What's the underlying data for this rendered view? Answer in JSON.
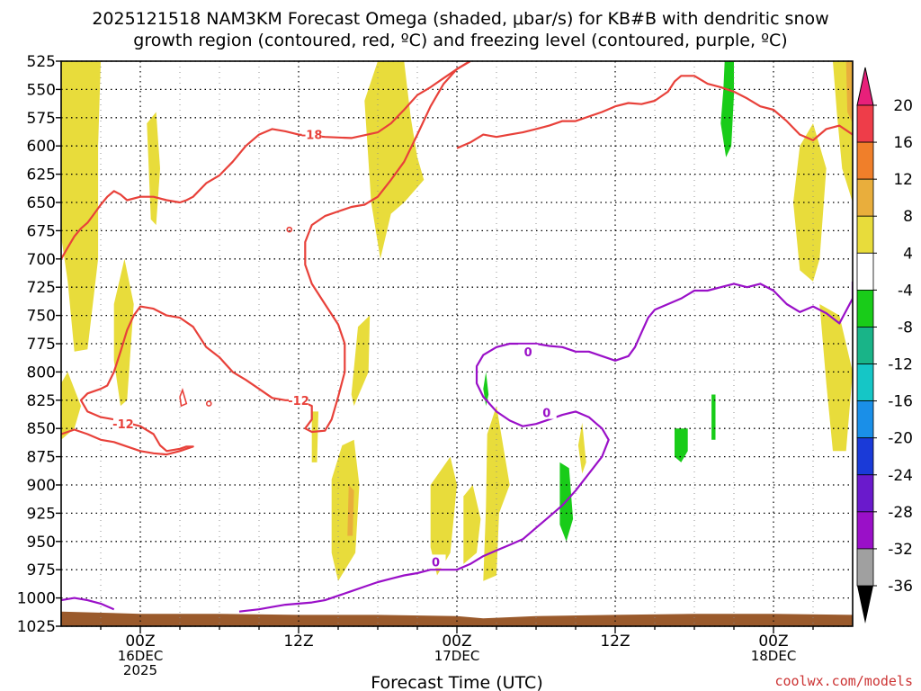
{
  "chart_data": {
    "type": "time-height-cross-section",
    "title_line1": "2025121518 NAM3KM Forecast Omega (shaded, μbar/s) for KB#B with dendritic snow",
    "title_line2": "growth region (contoured, red, ºC) and freezing level (contoured, purple, ºC)",
    "xlabel": "Forecast Time (UTC)",
    "credit": "coolwx.com/models",
    "x_range_hours": [
      -6,
      54
    ],
    "x_ticks": [
      {
        "hour": 0,
        "lines": [
          "00Z",
          "16DEC",
          "2025"
        ]
      },
      {
        "hour": 12,
        "lines": [
          "12Z"
        ]
      },
      {
        "hour": 24,
        "lines": [
          "00Z",
          "17DEC"
        ]
      },
      {
        "hour": 36,
        "lines": [
          "12Z"
        ]
      },
      {
        "hour": 48,
        "lines": [
          "00Z",
          "18DEC"
        ]
      }
    ],
    "y_range_hpa": [
      525,
      1025
    ],
    "y_ticks": [
      525,
      550,
      575,
      600,
      625,
      650,
      675,
      700,
      725,
      750,
      775,
      800,
      825,
      850,
      875,
      900,
      925,
      950,
      975,
      1000,
      1025
    ],
    "colorbar": {
      "labels": [
        "20",
        "16",
        "12",
        "8",
        "4",
        "-4",
        "-8",
        "-12",
        "-16",
        "-20",
        "-24",
        "-28",
        "-32",
        "-36"
      ],
      "colors": [
        "#ee3d49",
        "#f07f2a",
        "#e9ae3c",
        "#e8dc3b",
        "#ffffff",
        "#19cc19",
        "#19b488",
        "#15c6c6",
        "#1a8fe8",
        "#1a3ad8",
        "#6a1acc",
        "#9a10c8",
        "#a0a0a0"
      ],
      "top_arrow_color": "#e8207a",
      "bottom_arrow_color": "#000000"
    },
    "colors": {
      "rising_weak": "#e8dc3b",
      "rising_moderate": "#e9ae3c",
      "rising_strong": "#e8802a",
      "sinking": "#19cc19",
      "dgz_contour": "#e8413a",
      "freezing_contour": "#9a10c8",
      "terrain": "#9a5a2c"
    },
    "contour_labels": {
      "dgz_cold": "-18",
      "dgz_warm": "-12",
      "dgz_warm_2": "-12",
      "freezing": "0",
      "freezing_2": "0",
      "freezing_3": "0"
    },
    "dgz_minus18_contour": [
      [
        -6,
        700
      ],
      [
        -5.5,
        690
      ],
      [
        -5,
        680
      ],
      [
        -4.5,
        673
      ],
      [
        -4,
        668
      ],
      [
        -3.5,
        660
      ],
      [
        -3,
        652
      ],
      [
        -2.5,
        645
      ],
      [
        -2,
        640
      ],
      [
        -1.5,
        643
      ],
      [
        -1,
        648
      ],
      [
        0,
        645
      ],
      [
        1,
        645
      ],
      [
        2,
        648
      ],
      [
        3,
        650
      ],
      [
        3.5,
        648
      ],
      [
        4,
        645
      ],
      [
        5,
        633
      ],
      [
        6,
        626
      ],
      [
        7,
        614
      ],
      [
        8,
        600
      ],
      [
        9,
        590
      ],
      [
        10,
        585
      ],
      [
        11,
        587
      ],
      [
        12,
        590
      ],
      [
        14,
        592
      ],
      [
        16,
        593
      ],
      [
        18,
        588
      ],
      [
        19,
        580
      ],
      [
        20,
        568
      ],
      [
        21,
        555
      ],
      [
        22,
        548
      ],
      [
        23,
        540
      ],
      [
        24,
        532
      ],
      [
        25,
        525
      ]
    ],
    "dgz_minus18_contour_2": [
      [
        25,
        525
      ],
      [
        24,
        532
      ],
      [
        23,
        545
      ],
      [
        22,
        565
      ],
      [
        21,
        590
      ],
      [
        20,
        614
      ],
      [
        19,
        630
      ],
      [
        18,
        645
      ],
      [
        17,
        652
      ],
      [
        16,
        654
      ],
      [
        15,
        658
      ],
      [
        14,
        662
      ],
      [
        13,
        670
      ],
      [
        12.5,
        685
      ],
      [
        12.5,
        705
      ],
      [
        13,
        722
      ],
      [
        14,
        740
      ],
      [
        15,
        758
      ],
      [
        15.5,
        775
      ],
      [
        15.5,
        800
      ],
      [
        15,
        822
      ],
      [
        14.5,
        842
      ],
      [
        14,
        852
      ],
      [
        13,
        853
      ],
      [
        12.5,
        850
      ],
      [
        13,
        842
      ],
      [
        13,
        830
      ],
      [
        12,
        825
      ],
      [
        11,
        825
      ],
      [
        10,
        823
      ],
      [
        9,
        815
      ],
      [
        8,
        807
      ],
      [
        7,
        800
      ],
      [
        6,
        787
      ],
      [
        5,
        778
      ],
      [
        4,
        760
      ],
      [
        3,
        752
      ],
      [
        2,
        750
      ],
      [
        1,
        744
      ],
      [
        0,
        742
      ],
      [
        -0.5,
        750
      ],
      [
        -1,
        763
      ],
      [
        -1.5,
        782
      ],
      [
        -2,
        800
      ],
      [
        -2.5,
        812
      ],
      [
        -3,
        815
      ],
      [
        -4,
        819
      ],
      [
        -4.5,
        825
      ],
      [
        -4,
        835
      ],
      [
        -3,
        840
      ],
      [
        -2,
        842
      ],
      [
        -1,
        845
      ],
      [
        0,
        848
      ],
      [
        1,
        855
      ],
      [
        1.5,
        865
      ],
      [
        2,
        870
      ],
      [
        3,
        868
      ],
      [
        3.5,
        866
      ],
      [
        4,
        866
      ],
      [
        3,
        870
      ],
      [
        2,
        873
      ],
      [
        1,
        872
      ],
      [
        0,
        870
      ],
      [
        -1,
        866
      ],
      [
        -2,
        862
      ],
      [
        -3,
        860
      ],
      [
        -4,
        855
      ],
      [
        -5,
        851
      ],
      [
        -6,
        855
      ]
    ],
    "dgz_right_branch": [
      [
        24,
        602
      ],
      [
        25,
        597
      ],
      [
        26,
        590
      ],
      [
        27,
        592
      ],
      [
        28,
        590
      ],
      [
        29,
        588
      ],
      [
        30,
        585
      ],
      [
        31,
        582
      ],
      [
        32,
        578
      ],
      [
        33,
        578
      ],
      [
        34,
        574
      ],
      [
        35,
        570
      ],
      [
        36,
        565
      ],
      [
        37,
        562
      ],
      [
        38,
        563
      ],
      [
        39,
        560
      ],
      [
        40,
        552
      ],
      [
        40.5,
        543
      ],
      [
        41,
        538
      ],
      [
        42,
        538
      ],
      [
        43,
        545
      ],
      [
        44,
        548
      ],
      [
        45,
        552
      ],
      [
        46,
        558
      ],
      [
        47,
        565
      ],
      [
        48,
        568
      ],
      [
        49,
        578
      ],
      [
        50,
        590
      ],
      [
        51,
        595
      ],
      [
        52,
        585
      ],
      [
        53,
        582
      ],
      [
        54,
        590
      ]
    ],
    "freezing_contour": [
      [
        -6,
        1002
      ],
      [
        -5,
        1000
      ],
      [
        -4,
        1002
      ],
      [
        -3,
        1005
      ],
      [
        -2,
        1010
      ]
    ],
    "freezing_contour_2": [
      [
        7.5,
        1012
      ],
      [
        9,
        1010
      ],
      [
        10,
        1008
      ],
      [
        11,
        1006
      ],
      [
        12,
        1005
      ],
      [
        13,
        1004
      ],
      [
        14,
        1002
      ],
      [
        15,
        998
      ],
      [
        16,
        994
      ],
      [
        17,
        990
      ],
      [
        18,
        986
      ],
      [
        19,
        983
      ],
      [
        20,
        980
      ],
      [
        21,
        978
      ],
      [
        22,
        975
      ],
      [
        23,
        975
      ],
      [
        24,
        975
      ],
      [
        25,
        970
      ],
      [
        26,
        963
      ],
      [
        27,
        958
      ],
      [
        28,
        953
      ],
      [
        29,
        948
      ],
      [
        30,
        938
      ],
      [
        31,
        928
      ],
      [
        32,
        918
      ],
      [
        33,
        905
      ],
      [
        34,
        890
      ],
      [
        35,
        875
      ],
      [
        35.5,
        860
      ],
      [
        35,
        850
      ],
      [
        34.5,
        845
      ],
      [
        34,
        840
      ],
      [
        33,
        835
      ],
      [
        32,
        838
      ],
      [
        31,
        842
      ],
      [
        30,
        846
      ],
      [
        29,
        848
      ],
      [
        28,
        843
      ],
      [
        27,
        835
      ],
      [
        26,
        822
      ],
      [
        25.5,
        810
      ],
      [
        25.5,
        795
      ],
      [
        26,
        785
      ],
      [
        27,
        778
      ],
      [
        28,
        775
      ],
      [
        29,
        775
      ],
      [
        30,
        775
      ],
      [
        31,
        777
      ],
      [
        32,
        778
      ],
      [
        33,
        782
      ],
      [
        34,
        782
      ],
      [
        35,
        786
      ],
      [
        36,
        790
      ],
      [
        37,
        786
      ],
      [
        37.5,
        778
      ],
      [
        38,
        765
      ],
      [
        38.5,
        752
      ],
      [
        39,
        745
      ],
      [
        40,
        740
      ],
      [
        41,
        735
      ],
      [
        42,
        728
      ],
      [
        43,
        728
      ],
      [
        44,
        725
      ],
      [
        45,
        722
      ],
      [
        46,
        725
      ],
      [
        47,
        722
      ],
      [
        48,
        728
      ],
      [
        49,
        740
      ],
      [
        50,
        747
      ],
      [
        51,
        742
      ],
      [
        52,
        748
      ],
      [
        53,
        757
      ],
      [
        54,
        735
      ],
      [
        54,
        720
      ]
    ],
    "omega_yellow_regions": [
      [
        [
          -6,
          525
        ],
        [
          -3,
          525
        ],
        [
          -3.2,
          600
        ],
        [
          -3.2,
          700
        ],
        [
          -4,
          780
        ],
        [
          -5,
          782
        ],
        [
          -5.5,
          720
        ],
        [
          -6,
          680
        ]
      ],
      [
        [
          0.5,
          580
        ],
        [
          1.2,
          570
        ],
        [
          1.5,
          620
        ],
        [
          1.2,
          670
        ],
        [
          0.8,
          665
        ]
      ],
      [
        [
          -2,
          740
        ],
        [
          -1.2,
          700
        ],
        [
          -0.5,
          740
        ],
        [
          -1,
          825
        ],
        [
          -1.5,
          830
        ],
        [
          -2,
          790
        ]
      ],
      [
        [
          -6,
          810
        ],
        [
          -5.5,
          800
        ],
        [
          -4.5,
          830
        ],
        [
          -5,
          850
        ],
        [
          -6,
          860
        ]
      ],
      [
        [
          18,
          525
        ],
        [
          20,
          525
        ],
        [
          20.5,
          575
        ],
        [
          21,
          610
        ],
        [
          21.5,
          630
        ],
        [
          20,
          650
        ],
        [
          19,
          660
        ],
        [
          18.2,
          700
        ],
        [
          17.5,
          650
        ],
        [
          17,
          560
        ]
      ],
      [
        [
          16.5,
          760
        ],
        [
          17.4,
          750
        ],
        [
          17.3,
          800
        ],
        [
          16.2,
          830
        ],
        [
          16,
          820
        ]
      ],
      [
        [
          13,
          835
        ],
        [
          13.5,
          835
        ],
        [
          13.4,
          880
        ],
        [
          13,
          880
        ]
      ],
      [
        [
          15.3,
          865
        ],
        [
          16.2,
          860
        ],
        [
          16.6,
          900
        ],
        [
          16.3,
          960
        ],
        [
          15,
          985
        ],
        [
          14.5,
          960
        ],
        [
          14.5,
          895
        ]
      ],
      [
        [
          22,
          900
        ],
        [
          23.5,
          875
        ],
        [
          24,
          900
        ],
        [
          23.5,
          960
        ],
        [
          22.5,
          980
        ],
        [
          22,
          955
        ]
      ],
      [
        [
          24.5,
          910
        ],
        [
          25.2,
          900
        ],
        [
          25.8,
          930
        ],
        [
          25.5,
          960
        ],
        [
          24.5,
          970
        ]
      ],
      [
        [
          26.3,
          855
        ],
        [
          27,
          830
        ],
        [
          28,
          900
        ],
        [
          27.2,
          925
        ],
        [
          27,
          980
        ],
        [
          26,
          985
        ],
        [
          26.2,
          920
        ]
      ],
      [
        [
          33.2,
          865
        ],
        [
          33.5,
          845
        ],
        [
          33.8,
          880
        ],
        [
          33.5,
          890
        ]
      ],
      [
        [
          50,
          600
        ],
        [
          51,
          580
        ],
        [
          52,
          620
        ],
        [
          51.5,
          700
        ],
        [
          51,
          720
        ],
        [
          50,
          710
        ],
        [
          49.5,
          650
        ]
      ],
      [
        [
          52.5,
          525
        ],
        [
          54,
          525
        ],
        [
          54,
          650
        ],
        [
          53.2,
          620
        ],
        [
          52.8,
          570
        ]
      ],
      [
        [
          51.5,
          740
        ],
        [
          53,
          750
        ],
        [
          54,
          800
        ],
        [
          53.5,
          870
        ],
        [
          52.5,
          870
        ],
        [
          52,
          810
        ]
      ]
    ],
    "omega_orange_regions": [
      [
        [
          53.5,
          525
        ],
        [
          54,
          525
        ],
        [
          54,
          580
        ],
        [
          53.6,
          570
        ]
      ],
      [
        [
          15.8,
          900
        ],
        [
          16.2,
          905
        ],
        [
          16.1,
          945
        ],
        [
          15.7,
          945
        ]
      ]
    ],
    "omega_green_regions": [
      [
        [
          44.3,
          525
        ],
        [
          45,
          525
        ],
        [
          45,
          555
        ],
        [
          44.8,
          600
        ],
        [
          44.4,
          610
        ],
        [
          44,
          580
        ],
        [
          44.2,
          550
        ]
      ],
      [
        [
          31.8,
          880
        ],
        [
          32.5,
          885
        ],
        [
          32.8,
          930
        ],
        [
          32.3,
          950
        ],
        [
          31.8,
          935
        ]
      ],
      [
        [
          26.2,
          800
        ],
        [
          26.4,
          820
        ],
        [
          26.2,
          830
        ],
        [
          26,
          815
        ]
      ],
      [
        [
          40.5,
          850
        ],
        [
          41.5,
          850
        ],
        [
          41.5,
          870
        ],
        [
          41,
          880
        ],
        [
          40.5,
          875
        ]
      ],
      [
        [
          43.3,
          820
        ],
        [
          43.6,
          820
        ],
        [
          43.6,
          860
        ],
        [
          43.3,
          860
        ]
      ]
    ],
    "terrain_profile": [
      [
        -6,
        1012
      ],
      [
        0,
        1014
      ],
      [
        6,
        1014
      ],
      [
        12,
        1015
      ],
      [
        18,
        1015
      ],
      [
        24,
        1016
      ],
      [
        26,
        1018
      ],
      [
        30,
        1016
      ],
      [
        36,
        1015
      ],
      [
        42,
        1014
      ],
      [
        48,
        1014
      ],
      [
        54,
        1015
      ]
    ]
  }
}
